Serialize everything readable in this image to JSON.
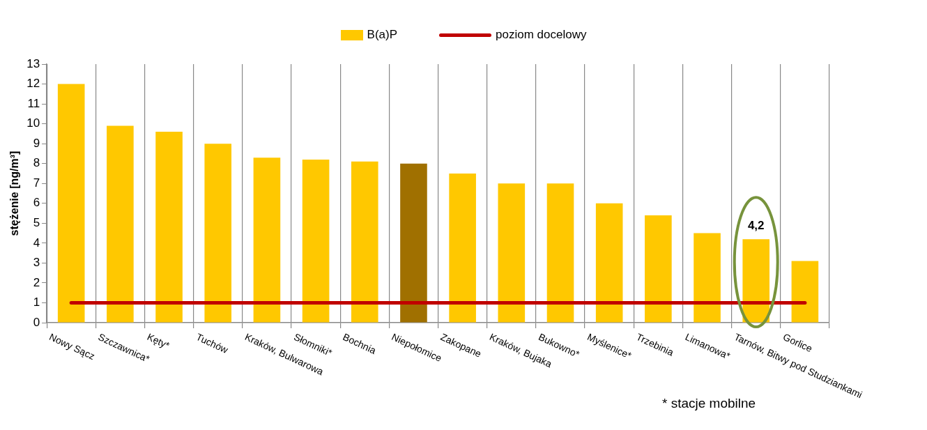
{
  "chart_data": {
    "type": "bar",
    "categories": [
      "Nowy Sącz",
      "Szczawnica*",
      "Kęty*",
      "Tuchów",
      "Kraków, Bulwarowa",
      "Słomniki*",
      "Bochnia",
      "Niepołomice",
      "Zakopane",
      "Kraków, Bujaka",
      "Bukowno*",
      "Myślenice*",
      "Trzebinia",
      "Limanowa*",
      "Tarnów, Bitwy pod Studziankami",
      "Gorlice"
    ],
    "series": [
      {
        "name": "B(a)P",
        "color": "#ffc800",
        "colors": [
          "#ffc800",
          "#ffc800",
          "#ffc800",
          "#ffc800",
          "#ffc800",
          "#ffc800",
          "#ffc800",
          "#a07000",
          "#ffc800",
          "#ffc800",
          "#ffc800",
          "#ffc800",
          "#ffc800",
          "#ffc800",
          "#ffc800",
          "#ffc800"
        ],
        "values": [
          12.0,
          9.9,
          9.6,
          9.0,
          8.3,
          8.2,
          8.1,
          8.0,
          7.5,
          7.0,
          7.0,
          6.0,
          5.4,
          4.5,
          4.2,
          3.1
        ]
      }
    ],
    "ylabel": "stężenie [ng/m³]",
    "ylim": [
      0,
      13
    ],
    "yticks": [
      0,
      1,
      2,
      3,
      4,
      5,
      6,
      7,
      8,
      9,
      10,
      11,
      12,
      13
    ],
    "ref_lines": [
      {
        "axis": "y",
        "value": 1,
        "label": "poziom docelowy",
        "color": "#c00000"
      }
    ],
    "value_labels": [
      null,
      null,
      null,
      null,
      null,
      null,
      null,
      null,
      null,
      null,
      null,
      null,
      null,
      null,
      "4,2",
      null
    ],
    "annotations": [
      "* stacje mobilne"
    ],
    "grid": "x",
    "legend": "top"
  }
}
